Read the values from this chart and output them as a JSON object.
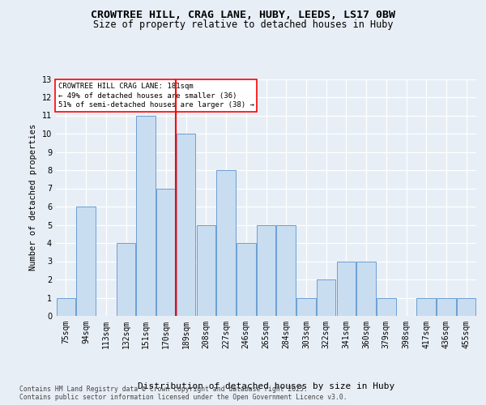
{
  "title_line1": "CROWTREE HILL, CRAG LANE, HUBY, LEEDS, LS17 0BW",
  "title_line2": "Size of property relative to detached houses in Huby",
  "categories": [
    "75sqm",
    "94sqm",
    "113sqm",
    "132sqm",
    "151sqm",
    "170sqm",
    "189sqm",
    "208sqm",
    "227sqm",
    "246sqm",
    "265sqm",
    "284sqm",
    "303sqm",
    "322sqm",
    "341sqm",
    "360sqm",
    "379sqm",
    "398sqm",
    "417sqm",
    "436sqm",
    "455sqm"
  ],
  "values": [
    1,
    6,
    0,
    4,
    11,
    7,
    10,
    5,
    8,
    4,
    5,
    5,
    1,
    2,
    3,
    3,
    1,
    0,
    1,
    1,
    1
  ],
  "bar_color": "#c9ddf0",
  "bar_edge_color": "#6b9fd4",
  "ref_line_index": 6,
  "annotation_title": "CROWTREE HILL CRAG LANE: 181sqm",
  "annotation_line1": "← 49% of detached houses are smaller (36)",
  "annotation_line2": "51% of semi-detached houses are larger (38) →",
  "ylabel": "Number of detached properties",
  "xlabel": "Distribution of detached houses by size in Huby",
  "ylim": [
    0,
    13
  ],
  "yticks": [
    0,
    1,
    2,
    3,
    4,
    5,
    6,
    7,
    8,
    9,
    10,
    11,
    12,
    13
  ],
  "footer_line1": "Contains HM Land Registry data © Crown copyright and database right 2025.",
  "footer_line2": "Contains public sector information licensed under the Open Government Licence v3.0.",
  "bg_color": "#e8eef5",
  "plot_bg_color": "#e8eef5",
  "grid_color": "#d0d8e4"
}
